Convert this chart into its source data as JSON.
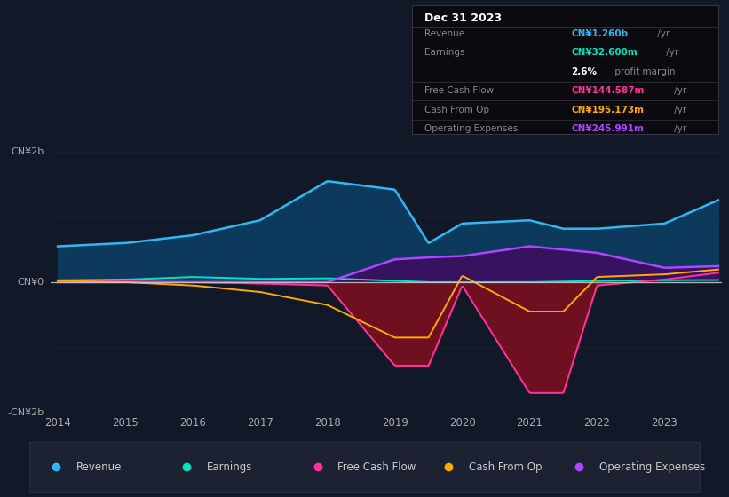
{
  "background_color": "#111827",
  "plot_bg_color": "#111827",
  "ylim": [
    -2.0,
    2.5
  ],
  "x_years": [
    2014,
    2015,
    2016,
    2017,
    2018,
    2019,
    2019.5,
    2020,
    2021,
    2021.5,
    2022,
    2023,
    2023.8
  ],
  "revenue": [
    0.55,
    0.6,
    0.72,
    0.95,
    1.55,
    1.42,
    0.6,
    0.9,
    0.95,
    0.82,
    0.82,
    0.9,
    1.26
  ],
  "earnings": [
    0.03,
    0.04,
    0.08,
    0.05,
    0.06,
    0.02,
    0.0,
    0.0,
    0.0,
    0.01,
    0.02,
    0.03,
    0.033
  ],
  "free_cash_flow": [
    0.02,
    0.01,
    0.0,
    -0.02,
    -0.05,
    -1.28,
    -1.28,
    -0.05,
    -1.7,
    -1.7,
    -0.05,
    0.04,
    0.145
  ],
  "cash_from_op": [
    0.02,
    0.0,
    -0.05,
    -0.15,
    -0.35,
    -0.85,
    -0.85,
    0.1,
    -0.45,
    -0.45,
    0.08,
    0.12,
    0.195
  ],
  "operating_expenses": [
    0.0,
    0.0,
    0.0,
    0.0,
    0.0,
    0.35,
    0.38,
    0.4,
    0.55,
    0.5,
    0.45,
    0.22,
    0.246
  ],
  "colors": {
    "revenue": "#2eb8f5",
    "earnings": "#00e5c0",
    "free_cash_flow": "#ff3399",
    "cash_from_op": "#ffaa00",
    "operating_expenses": "#b044ff",
    "revenue_fill": "#0d3a5c",
    "free_cash_flow_fill": "#7a1020",
    "op_exp_fill": "#3a1060",
    "zero_line": "#cccccc"
  },
  "info_box": {
    "date": "Dec 31 2023",
    "rows": [
      {
        "label": "Revenue",
        "value": "CN¥1.260b",
        "unit": " /yr",
        "color": "#2eb8f5"
      },
      {
        "label": "Earnings",
        "value": "CN¥32.600m",
        "unit": " /yr",
        "color": "#00e5c0"
      },
      {
        "label": "",
        "value": "2.6%",
        "unit": " profit margin",
        "color": "#ffffff"
      },
      {
        "label": "Free Cash Flow",
        "value": "CN¥144.587m",
        "unit": " /yr",
        "color": "#ff3399"
      },
      {
        "label": "Cash From Op",
        "value": "CN¥195.173m",
        "unit": " /yr",
        "color": "#ffaa00"
      },
      {
        "label": "Operating Expenses",
        "value": "CN¥245.991m",
        "unit": " /yr",
        "color": "#b044ff"
      }
    ]
  },
  "legend": [
    {
      "label": "Revenue",
      "color": "#2eb8f5"
    },
    {
      "label": "Earnings",
      "color": "#00e5c0"
    },
    {
      "label": "Free Cash Flow",
      "color": "#ff3399"
    },
    {
      "label": "Cash From Op",
      "color": "#ffaa00"
    },
    {
      "label": "Operating Expenses",
      "color": "#b044ff"
    }
  ],
  "ylabel_top": "CN¥2b",
  "ylabel_mid": "CN¥0",
  "ylabel_bottom": "-CN¥2b",
  "xticks": [
    2014,
    2015,
    2016,
    2017,
    2018,
    2019,
    2020,
    2021,
    2022,
    2023
  ]
}
